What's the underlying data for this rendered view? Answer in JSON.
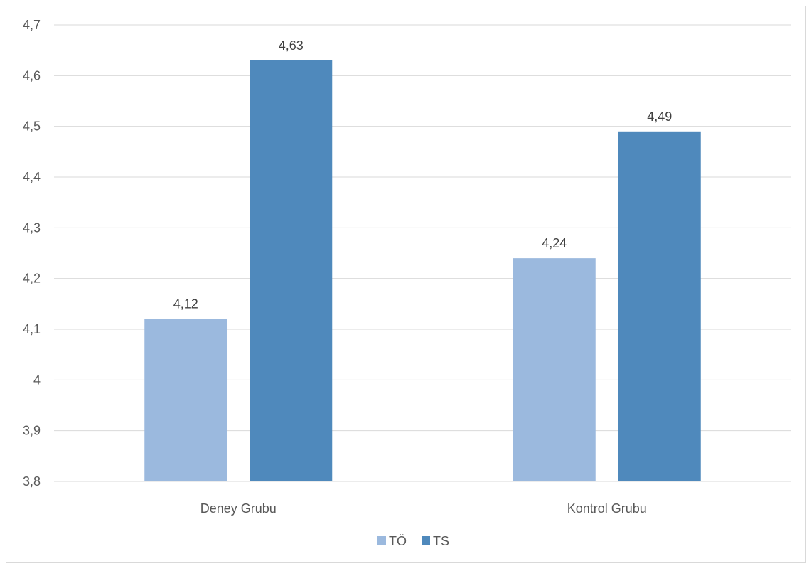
{
  "chart_data": {
    "type": "bar",
    "title": "",
    "xlabel": "",
    "ylabel": "",
    "categories": [
      "Deney Grubu",
      "Kontrol Grubu"
    ],
    "series": [
      {
        "name": "TÖ",
        "values": [
          4.12,
          4.24
        ],
        "labels": [
          "4,12",
          "4,24"
        ],
        "color": "#9bb9de"
      },
      {
        "name": "TS",
        "values": [
          4.63,
          4.49
        ],
        "labels": [
          "4,63",
          "4,49"
        ],
        "color": "#4f89bc"
      }
    ],
    "ylim": [
      3.8,
      4.7
    ],
    "yticks": [
      3.8,
      3.9,
      4.0,
      4.1,
      4.2,
      4.3,
      4.4,
      4.5,
      4.6,
      4.7
    ],
    "ytick_labels": [
      "3,8",
      "3,9",
      "4",
      "4,1",
      "4,2",
      "4,3",
      "4,4",
      "4,5",
      "4,6",
      "4,7"
    ],
    "grid": true,
    "legend_position": "bottom",
    "colors": {
      "gridline": "#d9d9d9",
      "axis": "#d9d9d9",
      "text": "#595959"
    }
  }
}
